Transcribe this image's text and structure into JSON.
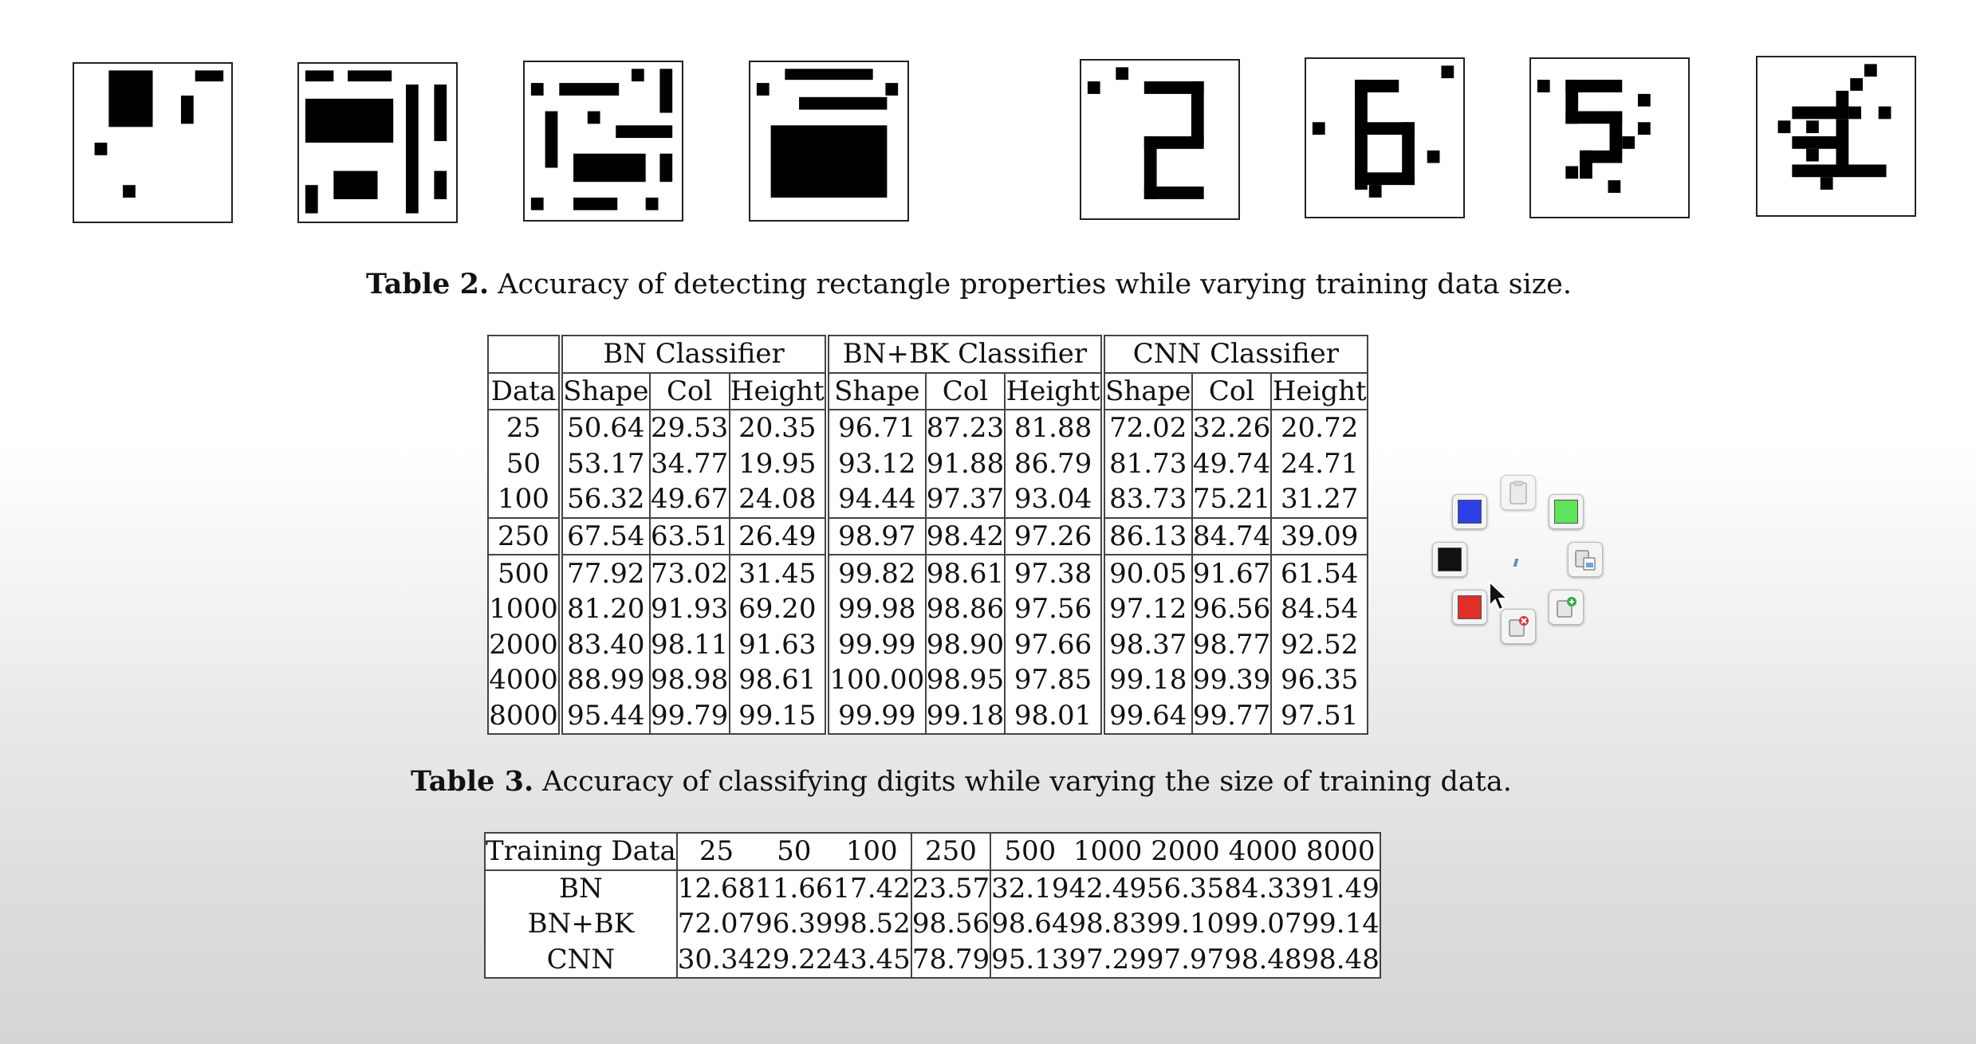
{
  "figure_images": [
    {
      "id": "rect-1"
    },
    {
      "id": "rect-2"
    },
    {
      "id": "rect-3"
    },
    {
      "id": "rect-4"
    },
    {
      "id": "digit-2"
    },
    {
      "id": "digit-6"
    },
    {
      "id": "digit-5"
    },
    {
      "id": "digit-3"
    }
  ],
  "table2": {
    "caption_label": "Table 2.",
    "caption_text": "Accuracy of detecting rectangle properties while varying training data size.",
    "groups": [
      "BN Classifier",
      "BN+BK Classifier",
      "CNN Classifier"
    ],
    "data_header": "Data",
    "sub_headers": [
      "Shape",
      "Col",
      "Height",
      "Shape",
      "Col",
      "Height",
      "Shape",
      "Col",
      "Height"
    ],
    "rows": [
      {
        "data": "25",
        "values": [
          "50.64",
          "29.53",
          "20.35",
          "96.71",
          "87.23",
          "81.88",
          "72.02",
          "32.26",
          "20.72"
        ]
      },
      {
        "data": "50",
        "values": [
          "53.17",
          "34.77",
          "19.95",
          "93.12",
          "91.88",
          "86.79",
          "81.73",
          "49.74",
          "24.71"
        ]
      },
      {
        "data": "100",
        "values": [
          "56.32",
          "49.67",
          "24.08",
          "94.44",
          "97.37",
          "93.04",
          "83.73",
          "75.21",
          "31.27"
        ]
      },
      {
        "data": "250",
        "values": [
          "67.54",
          "63.51",
          "26.49",
          "98.97",
          "98.42",
          "97.26",
          "86.13",
          "84.74",
          "39.09"
        ]
      },
      {
        "data": "500",
        "values": [
          "77.92",
          "73.02",
          "31.45",
          "99.82",
          "98.61",
          "97.38",
          "90.05",
          "91.67",
          "61.54"
        ]
      },
      {
        "data": "1000",
        "values": [
          "81.20",
          "91.93",
          "69.20",
          "99.98",
          "98.86",
          "97.56",
          "97.12",
          "96.56",
          "84.54"
        ]
      },
      {
        "data": "2000",
        "values": [
          "83.40",
          "98.11",
          "91.63",
          "99.99",
          "98.90",
          "97.66",
          "98.37",
          "98.77",
          "92.52"
        ]
      },
      {
        "data": "4000",
        "values": [
          "88.99",
          "98.98",
          "98.61",
          "100.00",
          "98.95",
          "97.85",
          "99.18",
          "99.39",
          "96.35"
        ]
      },
      {
        "data": "8000",
        "values": [
          "95.44",
          "99.79",
          "99.15",
          "99.99",
          "99.18",
          "98.01",
          "99.64",
          "99.77",
          "97.51"
        ]
      }
    ]
  },
  "table3": {
    "caption_label": "Table 3.",
    "caption_text": "Accuracy of classifying digits while varying the size of training data.",
    "header_label": "Training Data",
    "columns": [
      "25",
      "50",
      "100",
      "250",
      "500",
      "1000",
      "2000",
      "4000",
      "8000"
    ],
    "rows": [
      {
        "name": "BN",
        "values": [
          "12.68",
          "11.66",
          "17.42",
          "23.57",
          "32.19",
          "42.49",
          "56.35",
          "84.33",
          "91.49"
        ]
      },
      {
        "name": "BN+BK",
        "values": [
          "72.07",
          "96.39",
          "98.52",
          "98.56",
          "98.64",
          "98.83",
          "99.10",
          "99.07",
          "99.14"
        ]
      },
      {
        "name": "CNN",
        "values": [
          "30.34",
          "29.22",
          "43.45",
          "78.79",
          "95.13",
          "97.29",
          "97.97",
          "98.48",
          "98.48"
        ]
      }
    ]
  },
  "palette": {
    "colors": {
      "blue": "#2f3fe6",
      "green": "#5fe35a",
      "black": "#111111",
      "red": "#e0302a"
    },
    "tools": [
      "clipboard-icon",
      "paste-icon",
      "add-page-icon",
      "delete-page-icon"
    ]
  }
}
